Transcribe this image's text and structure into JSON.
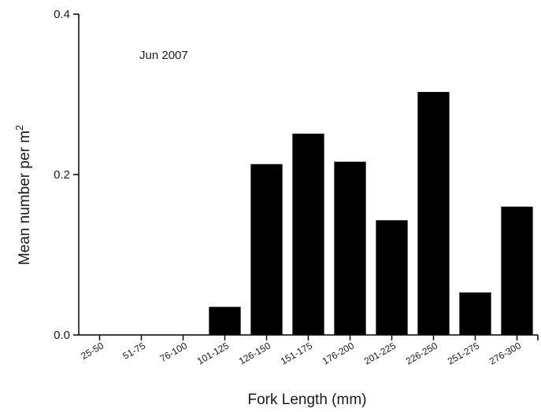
{
  "chart_data": {
    "type": "bar",
    "annotation": "Jun 2007",
    "xlabel": "Fork Length (mm)",
    "ylabel": "Mean number per m",
    "ylabel_superscript": "2",
    "categories": [
      "25-50",
      "51-75",
      "76-100",
      "101-125",
      "126-150",
      "151-175",
      "176-200",
      "201-225",
      "226-250",
      "251-275",
      "276-300"
    ],
    "values": [
      0,
      0,
      0,
      0.035,
      0.213,
      0.251,
      0.216,
      0.143,
      0.303,
      0.053,
      0.16
    ],
    "ylim": [
      0,
      0.4
    ],
    "yticks": [
      "0.0",
      "0.2",
      "0.4"
    ],
    "bar_color": "#000000",
    "grid": false,
    "legend": "none"
  }
}
